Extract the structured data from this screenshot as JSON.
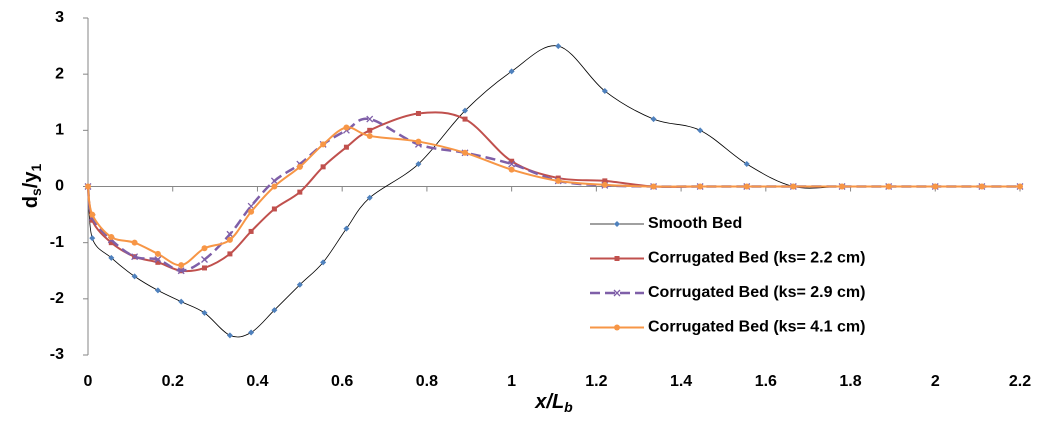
{
  "chart_data": {
    "type": "line",
    "y_label": [
      "d",
      "s",
      "/y",
      "1"
    ],
    "x_label": [
      "x/L",
      "b"
    ],
    "xlim": [
      0,
      2.2
    ],
    "xticks": [
      0,
      0.2,
      0.4,
      0.6,
      0.8,
      1,
      1.2,
      1.4,
      1.6,
      1.8,
      2,
      2.2
    ],
    "ylim": [
      -3,
      3
    ],
    "yticks": [
      -3,
      -2,
      -1,
      0,
      1,
      2,
      3
    ],
    "smooth": true,
    "legend": "lower-right",
    "series": [
      {
        "name": "Smooth Bed",
        "color": "#000000",
        "marker_color": "#4f81bd",
        "marker": "diamond",
        "width": 0.8,
        "dash": false,
        "x": [
          0,
          0.01,
          0.055,
          0.11,
          0.165,
          0.22,
          0.275,
          0.335,
          0.385,
          0.44,
          0.5,
          0.555,
          0.61,
          0.665,
          0.78,
          0.89,
          1.0,
          1.11,
          1.22,
          1.335,
          1.445,
          1.555,
          1.665,
          1.78,
          1.89,
          2.0,
          2.11,
          2.2
        ],
        "values": [
          0,
          -0.92,
          -1.27,
          -1.6,
          -1.85,
          -2.05,
          -2.25,
          -2.65,
          -2.6,
          -2.2,
          -1.75,
          -1.35,
          -0.75,
          -0.2,
          0.4,
          1.35,
          2.05,
          2.5,
          1.7,
          1.2,
          1.0,
          0.4,
          0,
          0,
          0,
          0,
          0,
          0
        ]
      },
      {
        "name": "Corrugated Bed (ks= 2.2 cm)",
        "color": "#c0504d",
        "marker_color": "#c0504d",
        "marker": "square",
        "width": 2,
        "dash": false,
        "x": [
          0,
          0.01,
          0.055,
          0.11,
          0.165,
          0.22,
          0.275,
          0.335,
          0.385,
          0.44,
          0.5,
          0.555,
          0.61,
          0.665,
          0.78,
          0.89,
          1.0,
          1.11,
          1.22,
          1.335,
          1.445,
          1.555,
          1.665,
          1.78,
          1.89,
          2.0,
          2.11,
          2.2
        ],
        "values": [
          0,
          -0.6,
          -1.0,
          -1.25,
          -1.35,
          -1.5,
          -1.45,
          -1.2,
          -0.8,
          -0.4,
          -0.1,
          0.35,
          0.7,
          1.0,
          1.3,
          1.2,
          0.45,
          0.15,
          0.1,
          0,
          0,
          0,
          0,
          0,
          0,
          0,
          0,
          0
        ]
      },
      {
        "name": "Corrugated Bed (ks= 2.9 cm)",
        "color": "#7f5fa8",
        "marker_color": "#7f5fa8",
        "marker": "x",
        "width": 2.5,
        "dash": true,
        "x": [
          0,
          0.01,
          0.055,
          0.11,
          0.165,
          0.22,
          0.275,
          0.335,
          0.385,
          0.44,
          0.5,
          0.555,
          0.61,
          0.665,
          0.78,
          0.89,
          1.0,
          1.11,
          1.22,
          1.335,
          1.445,
          1.555,
          1.665,
          1.78,
          1.89,
          2.0,
          2.11,
          2.2
        ],
        "values": [
          0,
          -0.55,
          -0.95,
          -1.25,
          -1.3,
          -1.5,
          -1.3,
          -0.85,
          -0.35,
          0.1,
          0.4,
          0.75,
          1.0,
          1.2,
          0.75,
          0.6,
          0.4,
          0.1,
          0.02,
          0,
          0,
          0,
          0,
          0,
          0,
          0,
          0,
          0
        ]
      },
      {
        "name": "Corrugated Bed (ks= 4.1 cm)",
        "color": "#f79646",
        "marker_color": "#f79646",
        "marker": "circle",
        "width": 2,
        "dash": false,
        "x": [
          0,
          0.01,
          0.055,
          0.11,
          0.165,
          0.22,
          0.275,
          0.335,
          0.385,
          0.44,
          0.5,
          0.555,
          0.61,
          0.665,
          0.78,
          0.89,
          1.0,
          1.11,
          1.22,
          1.335,
          1.445,
          1.555,
          1.665,
          1.78,
          1.89,
          2.0,
          2.11,
          2.2
        ],
        "values": [
          0,
          -0.5,
          -0.9,
          -1.0,
          -1.2,
          -1.4,
          -1.1,
          -0.95,
          -0.45,
          0,
          0.35,
          0.75,
          1.05,
          0.9,
          0.8,
          0.6,
          0.3,
          0.1,
          0.03,
          0,
          0,
          0,
          0,
          0,
          0,
          0,
          0,
          0
        ]
      }
    ]
  }
}
